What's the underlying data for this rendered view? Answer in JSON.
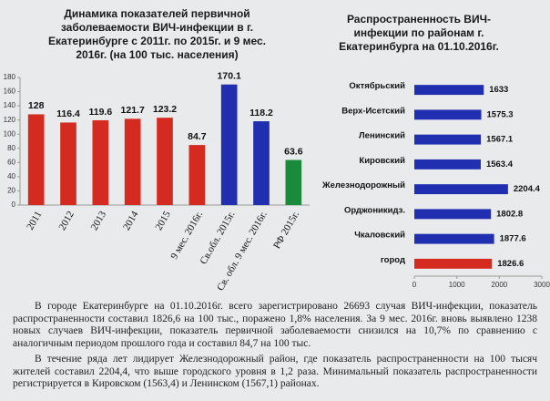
{
  "chart_data": [
    {
      "type": "bar",
      "orientation": "vertical",
      "title": "Динамика показателей первичной заболеваемости ВИЧ-инфекции в г. Екатеринбурге с 2011г. по 2015г. и 9 мес. 2016г. (на 100 тыс. населения)",
      "categories": [
        "2011",
        "2012",
        "2013",
        "2014",
        "2015",
        "9 мес. 2016г.",
        "Св.обл. 2015г.",
        "Св. обл. 9 мес. 2016г.",
        "РФ 2015г."
      ],
      "values": [
        128,
        116.4,
        119.6,
        121.7,
        123.2,
        84.7,
        170.1,
        118.2,
        63.6
      ],
      "colors": [
        "#d42a20",
        "#d42a20",
        "#d42a20",
        "#d42a20",
        "#d42a20",
        "#d42a20",
        "#1f2fb0",
        "#1f2fb0",
        "#1b8a3a"
      ],
      "ylim": [
        0,
        180
      ],
      "yticks": [
        0,
        20,
        40,
        60,
        80,
        100,
        120,
        140,
        160,
        180
      ],
      "grid": false
    },
    {
      "type": "bar",
      "orientation": "horizontal",
      "title": "Распространенность ВИЧ-инфекции по районам г. Екатеринбурга на 01.10.2016г.",
      "categories": [
        "Октябрьский",
        "Верх-Исетский",
        "Ленинский",
        "Кировский",
        "Железнодорожный",
        "Орджоникидз.",
        "Чкаловский",
        "город"
      ],
      "values": [
        1633,
        1575.3,
        1567.1,
        1563.4,
        2204.4,
        1802.8,
        1877.6,
        1826.6
      ],
      "colors": [
        "#1f2fb0",
        "#1f2fb0",
        "#1f2fb0",
        "#1f2fb0",
        "#1f2fb0",
        "#1f2fb0",
        "#1f2fb0",
        "#d42a20"
      ],
      "xlim": [
        0,
        3000
      ],
      "xticks": [
        0,
        1000,
        2000,
        3000
      ],
      "grid": false
    }
  ],
  "paragraphs": [
    "В городе Екатеринбурге на 01.10.2016г. всего зарегистрировано 26693 случая ВИЧ-инфекции, показатель распространенности составил 1826,6 на 100 тыс., поражено 1,8% населения. За 9 мес. 2016г. вновь выявлено 1238 новых случаев ВИЧ-инфекции, показатель первичной заболеваемости снизился на 10,7% по сравнению с аналогичным периодом прошлого года и составил 84,7 на 100 тыс.",
    "В течение ряда лет лидирует Железнодорожный район, где показатель распространенности на 100 тысяч жителей составил 2204,4, что выше городского уровня в 1,2 раза. Минимальный показатель распространенности регистрируется в Кировском (1563,4) и Ленинском (1567,1) районах."
  ]
}
